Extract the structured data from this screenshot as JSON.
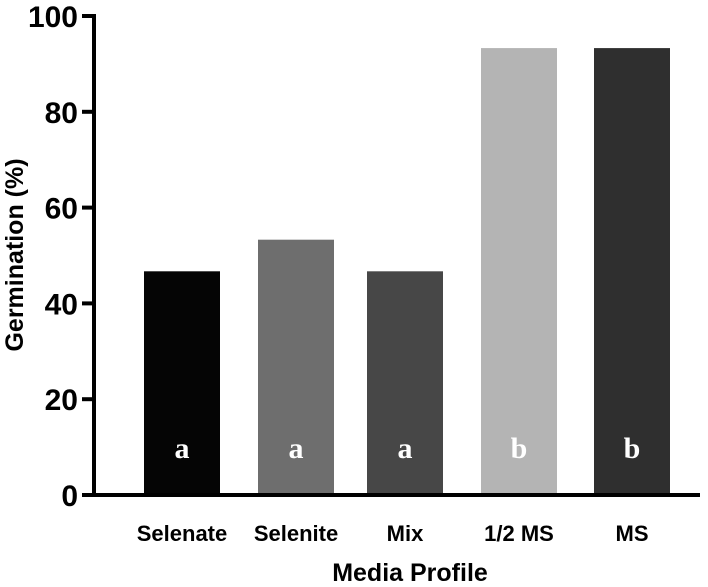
{
  "chart_data": {
    "type": "bar",
    "categories": [
      "Selenate",
      "Selenite",
      "Mix",
      "1/2 MS",
      "MS"
    ],
    "values": [
      46.7,
      53.3,
      46.7,
      93.3,
      93.3
    ],
    "significance_letters": [
      "a",
      "a",
      "a",
      "b",
      "b"
    ],
    "bar_colors": [
      "#050505",
      "#6e6e6e",
      "#474747",
      "#b4b4b4",
      "#2f2f2f"
    ],
    "title": "",
    "xlabel": "Media Profile",
    "ylabel": "Germination (%)",
    "ylim": [
      0,
      100
    ],
    "yticks": [
      0,
      20,
      40,
      60,
      80,
      100
    ],
    "ytick_labels": [
      "0",
      "20",
      "40",
      "60",
      "80",
      "100"
    ],
    "grid": false,
    "legend": "none"
  }
}
